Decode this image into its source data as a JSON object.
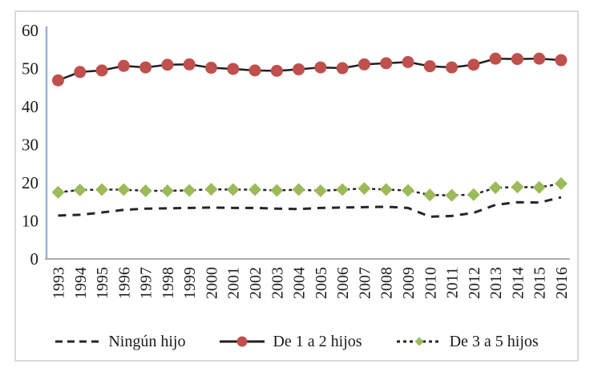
{
  "chart_data": {
    "type": "line",
    "title": "",
    "xlabel": "",
    "ylabel": "",
    "x_labels": [
      "1993",
      "1994",
      "1995",
      "1996",
      "1997",
      "1998",
      "1999",
      "2000",
      "2001",
      "2002",
      "2003",
      "2004",
      "2005",
      "2006",
      "2007",
      "2008",
      "2009",
      "2010",
      "2011",
      "2012",
      "2013",
      "2014",
      "2015",
      "2016"
    ],
    "y_ticks": [
      60,
      50,
      40,
      30,
      20,
      10,
      0
    ],
    "ylim": [
      0,
      60
    ],
    "grid": false,
    "legend_position": "bottom",
    "series": [
      {
        "name": "Ningún hijo",
        "style": "dashed",
        "marker": "none",
        "line_color": "#262626",
        "values": [
          11.4,
          11.6,
          12.2,
          12.9,
          13.2,
          13.3,
          13.4,
          13.5,
          13.4,
          13.4,
          13.2,
          13.1,
          13.4,
          13.5,
          13.6,
          13.7,
          13.4,
          11.1,
          11.3,
          12.1,
          14.2,
          14.9,
          14.8,
          16.2
        ]
      },
      {
        "name": "De 1 a 2 hijos",
        "style": "solid",
        "marker": "circle",
        "marker_color": "#C0504D",
        "line_color": "#1F1F1F",
        "values": [
          46.9,
          49.1,
          49.5,
          50.7,
          50.3,
          51.0,
          51.1,
          50.2,
          49.9,
          49.5,
          49.4,
          49.8,
          50.3,
          50.1,
          51.1,
          51.4,
          51.7,
          50.6,
          50.3,
          51.0,
          52.6,
          52.5,
          52.6,
          52.2
        ]
      },
      {
        "name": "De 3 a 5 hijos",
        "style": "dash-dot",
        "marker": "diamond",
        "marker_color": "#9BBB59",
        "line_color": "#262626",
        "values": [
          17.5,
          18.1,
          18.2,
          18.2,
          17.9,
          17.9,
          18.0,
          18.3,
          18.2,
          18.2,
          18.0,
          18.2,
          17.9,
          18.2,
          18.5,
          18.2,
          18.0,
          16.8,
          16.7,
          16.9,
          18.7,
          18.9,
          18.8,
          19.8
        ]
      }
    ],
    "colors": {
      "y_axis_line": "#95B3D7",
      "x_axis_line": "#ACACAC",
      "frame_border": "#D9D9D9",
      "tick_text": "#1A1A1A"
    }
  }
}
